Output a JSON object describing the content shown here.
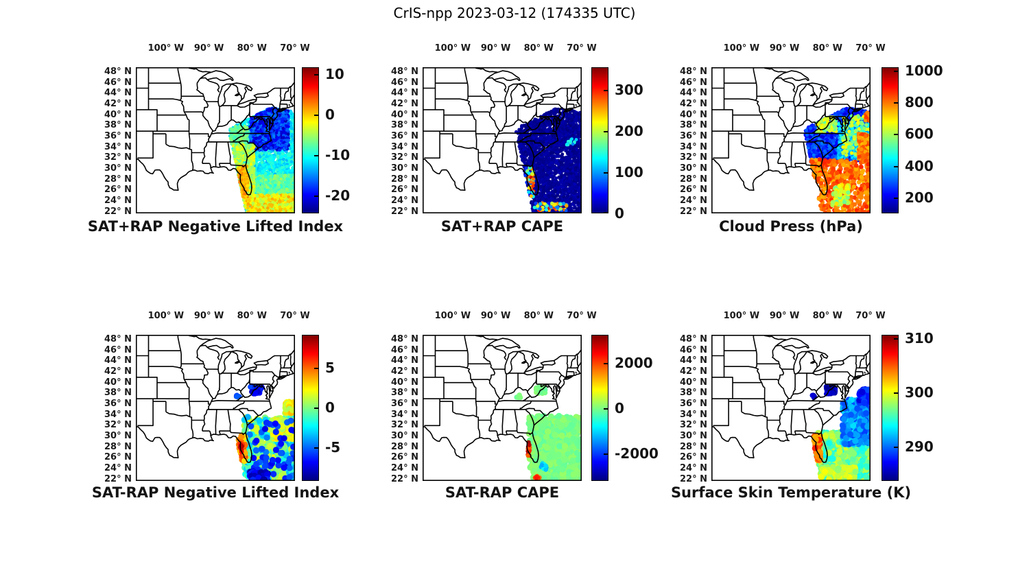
{
  "figure_title": "CrIS-npp 2023-03-12 (174335 UTC)",
  "axes": {
    "lon_labels": [
      "100° W",
      "90° W",
      "80° W",
      "70° W"
    ],
    "lon_values": [
      -100,
      -90,
      -80,
      -70
    ],
    "lat_labels": [
      "48° N",
      "46° N",
      "44° N",
      "42° N",
      "40° N",
      "38° N",
      "36° N",
      "34° N",
      "32° N",
      "30° N",
      "28° N",
      "26° N",
      "24° N",
      "22° N"
    ],
    "lat_values": [
      48,
      46,
      44,
      42,
      40,
      38,
      36,
      34,
      32,
      30,
      28,
      26,
      24,
      22
    ]
  },
  "map": {
    "lon_range": [
      -107,
      -70
    ],
    "lat_range": [
      21.7,
      48.9
    ]
  },
  "swath_polygon": [
    [
      -85.4,
      37.2
    ],
    [
      -84,
      38
    ],
    [
      -75.6,
      41.4
    ],
    [
      -70,
      40.6
    ],
    [
      -70,
      21.7
    ],
    [
      -81.3,
      21.7
    ]
  ],
  "colors": {
    "jet_top": "#800000",
    "jet_bottom": "#000080",
    "line_color": "#000000"
  },
  "chart_data": [
    {
      "type": "scatter",
      "title": "SAT+RAP Negative Lifted Index",
      "colorbar": {
        "vmin": -24.5,
        "vmax": 11.7,
        "ticks": [
          10,
          0,
          -10,
          -20
        ]
      },
      "dot_radius": 2.4,
      "clusters": [
        {
          "lon": [
            -85.4,
            -70
          ],
          "lat": [
            21.7,
            41.5
          ],
          "n": 3200,
          "v": [
            -13.5,
            -8.5
          ]
        },
        {
          "lon": [
            -80,
            -70
          ],
          "lat": [
            23.8,
            28.8
          ],
          "n": 520,
          "v": [
            -10,
            -5
          ]
        },
        {
          "lon": [
            -85,
            -81
          ],
          "lat": [
            34.5,
            38
          ],
          "n": 180,
          "v": [
            -9,
            -5
          ]
        },
        {
          "lon": [
            -80.5,
            -71.5
          ],
          "lat": [
            33.5,
            41.5
          ],
          "n": 1000,
          "v": [
            -23,
            -15
          ]
        },
        {
          "lon": [
            -85.4,
            -79.5
          ],
          "lat": [
            25.5,
            34.5
          ],
          "n": 620,
          "v": [
            -7,
            -1.5
          ]
        },
        {
          "lon": [
            -83.2,
            -70
          ],
          "lat": [
            21.7,
            25.2
          ],
          "n": 650,
          "v": [
            -5,
            1.5
          ]
        },
        {
          "lon": [
            -83.2,
            -81
          ],
          "lat": [
            24.5,
            30.5
          ],
          "n": 200,
          "v": [
            -1,
            3
          ]
        }
      ]
    },
    {
      "type": "scatter",
      "title": "SAT+RAP CAPE",
      "colorbar": {
        "vmin": 0,
        "vmax": 355,
        "ticks": [
          300,
          200,
          100,
          0
        ]
      },
      "dot_radius": 2.4,
      "clusters": [
        {
          "lon": [
            -85.4,
            -70
          ],
          "lat": [
            21.7,
            41.5
          ],
          "n": 3200,
          "v": [
            0,
            18
          ]
        },
        {
          "lon": [
            -83.2,
            -81.2
          ],
          "lat": [
            24.8,
            30.3
          ],
          "n": 65,
          "v": [
            40,
            350
          ],
          "r": 2.6
        },
        {
          "lon": [
            -81,
            -73.5
          ],
          "lat": [
            22.2,
            23.6
          ],
          "n": 85,
          "v": [
            50,
            330
          ],
          "r": 2.6
        },
        {
          "lon": [
            -73.5,
            -71
          ],
          "lat": [
            34.3,
            35.6
          ],
          "n": 14,
          "v": [
            80,
            160
          ],
          "r": 2.4
        }
      ]
    },
    {
      "type": "scatter",
      "title": "Cloud Press (hPa)",
      "colorbar": {
        "vmin": 100,
        "vmax": 1020,
        "ticks": [
          1000,
          800,
          600,
          400,
          200
        ]
      },
      "dot_radius": 2.5,
      "clusters": [
        {
          "lon": [
            -85.4,
            -70
          ],
          "lat": [
            31.5,
            41.5
          ],
          "n": 2000,
          "v": [
            180,
            330
          ]
        },
        {
          "lon": [
            -77.5,
            -70
          ],
          "lat": [
            31.8,
            38.5
          ],
          "n": 420,
          "v": [
            340,
            460
          ]
        },
        {
          "lon": [
            -82.5,
            -78
          ],
          "lat": [
            36.8,
            39.6
          ],
          "n": 110,
          "v": [
            520,
            700
          ],
          "r": 2.7
        },
        {
          "lon": [
            -76.5,
            -70
          ],
          "lat": [
            32.5,
            40
          ],
          "n": 130,
          "v": [
            500,
            680
          ],
          "r": 2.7
        },
        {
          "lon": [
            -72.8,
            -70
          ],
          "lat": [
            31.8,
            36.6
          ],
          "n": 150,
          "v": [
            730,
            850
          ],
          "r": 3
        },
        {
          "lon": [
            -71.2,
            -70
          ],
          "lat": [
            38.8,
            40.6
          ],
          "n": 26,
          "v": [
            760,
            860
          ],
          "r": 3
        },
        {
          "lon": [
            -83.6,
            -70
          ],
          "lat": [
            21.7,
            31.6
          ],
          "n": 500,
          "v": [
            740,
            880
          ],
          "r": 3.2
        },
        {
          "lon": [
            -79,
            -75
          ],
          "lat": [
            23.2,
            27
          ],
          "n": 65,
          "v": [
            540,
            720
          ],
          "r": 3.2
        },
        {
          "lon": [
            -84.8,
            -81.5
          ],
          "lat": [
            28.8,
            31.8
          ],
          "n": 85,
          "v": [
            740,
            880
          ],
          "r": 3.2
        }
      ]
    },
    {
      "type": "scatter",
      "title": "SAT-RAP Negative Lifted Index",
      "colorbar": {
        "vmin": -9.2,
        "vmax": 9.1,
        "ticks": [
          5,
          0,
          -5
        ]
      },
      "dot_radius": 4.6,
      "clusters": [
        {
          "lon": [
            -81.8,
            -70
          ],
          "lat": [
            21.9,
            33.6
          ],
          "n": 620,
          "v": [
            -4,
            2
          ]
        },
        {
          "lon": [
            -75.5,
            -70
          ],
          "lat": [
            29.5,
            33.2
          ],
          "n": 110,
          "v": [
            0.5,
            3
          ]
        },
        {
          "lon": [
            -72.3,
            -70.2
          ],
          "lat": [
            34.3,
            36.4
          ],
          "n": 55,
          "v": [
            0.5,
            3.5
          ]
        },
        {
          "lon": [
            -80.5,
            -70
          ],
          "lat": [
            22,
            33
          ],
          "n": 65,
          "v": [
            -7.5,
            -4.5
          ]
        },
        {
          "lon": [
            -80.6,
            -76.3
          ],
          "lat": [
            21.8,
            23.4
          ],
          "n": 75,
          "v": [
            -9,
            -6
          ]
        },
        {
          "lon": [
            -83.1,
            -81.6
          ],
          "lat": [
            25.3,
            30.2
          ],
          "n": 55,
          "v": [
            2.5,
            6
          ]
        },
        {
          "lon": [
            -82.9,
            -82.3
          ],
          "lat": [
            27,
            29
          ],
          "n": 9,
          "v": [
            6,
            8.5
          ],
          "r": 3.4
        },
        {
          "lon": [
            -80.4,
            -77.6
          ],
          "lat": [
            37.9,
            39.4
          ],
          "n": 50,
          "v": [
            -8.5,
            -5.5
          ],
          "r": 3.8
        },
        {
          "lon": [
            -83.7,
            -82.9
          ],
          "lat": [
            37.1,
            37.7
          ],
          "n": 6,
          "v": [
            -7,
            -5
          ],
          "r": 3.6
        }
      ]
    },
    {
      "type": "scatter",
      "title": "SAT-RAP CAPE",
      "colorbar": {
        "vmin": -3200,
        "vmax": 3250,
        "ticks": [
          2000,
          0,
          -2000
        ]
      },
      "dot_radius": 4.6,
      "clusters": [
        {
          "lon": [
            -82.3,
            -70
          ],
          "lat": [
            21.7,
            33.8
          ],
          "n": 760,
          "v": [
            -180,
            180
          ]
        },
        {
          "lon": [
            -80.6,
            -78.4
          ],
          "lat": [
            37.9,
            39.2
          ],
          "n": 42,
          "v": [
            -150,
            150
          ],
          "r": 3.8
        },
        {
          "lon": [
            -85.2,
            -84.2
          ],
          "lat": [
            37.2,
            38.3
          ],
          "n": 12,
          "v": [
            -150,
            150
          ],
          "r": 3.8
        },
        {
          "lon": [
            -82.7,
            -82.1
          ],
          "lat": [
            26.4,
            28.9
          ],
          "n": 20,
          "v": [
            1700,
            3150
          ],
          "r": 3.2
        },
        {
          "lon": [
            -80.9,
            -79.7
          ],
          "lat": [
            21.8,
            22.6
          ],
          "n": 13,
          "v": [
            1400,
            2600
          ],
          "r": 3.4
        },
        {
          "lon": [
            -79.6,
            -78.2
          ],
          "lat": [
            23.8,
            25.1
          ],
          "n": 9,
          "v": [
            -1300,
            -700
          ],
          "r": 3.4
        }
      ]
    },
    {
      "type": "scatter",
      "title": "Surface Skin Temperature (K)",
      "colorbar": {
        "vmin": 283.7,
        "vmax": 310.6,
        "ticks": [
          310,
          300,
          290
        ]
      },
      "dot_radius": 4.6,
      "clusters": [
        {
          "lon": [
            -82.6,
            -70
          ],
          "lat": [
            21.7,
            30.8
          ],
          "n": 780,
          "v": [
            294,
            299.5
          ]
        },
        {
          "lon": [
            -76.5,
            -70
          ],
          "lat": [
            28.5,
            37
          ],
          "n": 400,
          "v": [
            288.5,
            293
          ]
        },
        {
          "lon": [
            -72.6,
            -70.3
          ],
          "lat": [
            36.2,
            38.8
          ],
          "n": 50,
          "v": [
            286,
            289
          ]
        },
        {
          "lon": [
            -80.3,
            -78.1
          ],
          "lat": [
            37.9,
            39.3
          ],
          "n": 55,
          "v": [
            284,
            286.2
          ],
          "r": 3.8
        },
        {
          "lon": [
            -83.6,
            -82.9
          ],
          "lat": [
            37.2,
            37.7
          ],
          "n": 6,
          "v": [
            285,
            287
          ],
          "r": 3.6
        },
        {
          "lon": [
            -83.1,
            -81.7
          ],
          "lat": [
            25.4,
            30.1
          ],
          "n": 75,
          "v": [
            302.5,
            306.5
          ]
        },
        {
          "lon": [
            -81.3,
            -80.6
          ],
          "lat": [
            23.9,
            24.5
          ],
          "n": 6,
          "v": [
            306.5,
            309
          ],
          "r": 3.4
        },
        {
          "lon": [
            -82.3,
            -73.5
          ],
          "lat": [
            21.8,
            24.3
          ],
          "n": 140,
          "v": [
            297,
            300.5
          ]
        }
      ]
    }
  ]
}
